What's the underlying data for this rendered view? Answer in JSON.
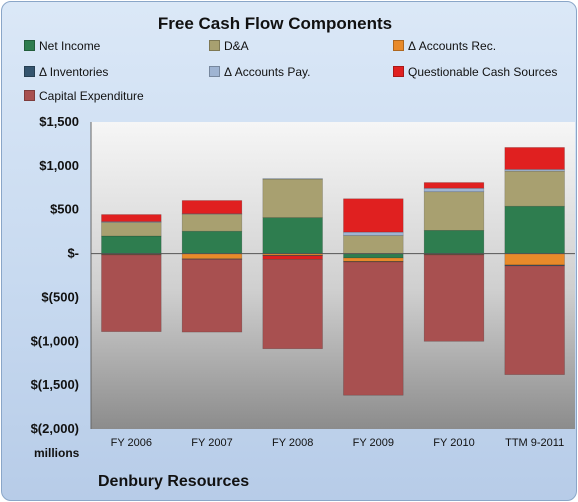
{
  "chart_data": {
    "type": "bar",
    "stacked": true,
    "title": "Free Cash Flow Components",
    "xlabel": "",
    "ylabel": "millions",
    "categories": [
      "FY 2006",
      "FY 2007",
      "FY 2008",
      "FY 2009",
      "FY 2010",
      "TTM 9-2011"
    ],
    "ylim": [
      -2000,
      1500
    ],
    "yticks": [
      1500,
      1000,
      500,
      0,
      -500,
      -1000,
      -1500,
      -2000
    ],
    "ytick_labels": [
      "$1,500",
      "$1,000",
      "$500",
      "$-",
      "$(500)",
      "$(1,000)",
      "$(1,500)",
      "$(2,000)"
    ],
    "grid": false,
    "legend_position": "top",
    "series": [
      {
        "name": "Net Income",
        "color": "#2e7d4f",
        "values": [
          200,
          255,
          410,
          -50,
          265,
          540
        ]
      },
      {
        "name": "D&A",
        "color": "#a8a070",
        "values": [
          155,
          195,
          440,
          205,
          440,
          400
        ]
      },
      {
        "name": "Δ Accounts Rec.",
        "color": "#e88a2a",
        "values": [
          -10,
          -60,
          -20,
          -40,
          -10,
          -130
        ]
      },
      {
        "name": "Δ Inventories",
        "color": "#34546e",
        "values": [
          -5,
          -5,
          -5,
          -5,
          -5,
          -10
        ]
      },
      {
        "name": "Δ Accounts Pay.",
        "color": "#9fb4d2",
        "values": [
          10,
          5,
          5,
          40,
          40,
          20
        ]
      },
      {
        "name": "Questionable Cash Sources",
        "color": "#e02020",
        "values": [
          80,
          150,
          -40,
          380,
          65,
          250
        ]
      },
      {
        "name": "Capital Expenditure",
        "color": "#a85050",
        "values": [
          -875,
          -830,
          -1020,
          -1520,
          -985,
          -1240
        ]
      }
    ]
  },
  "footer": {
    "units": "millions",
    "company": "Denbury Resources"
  }
}
